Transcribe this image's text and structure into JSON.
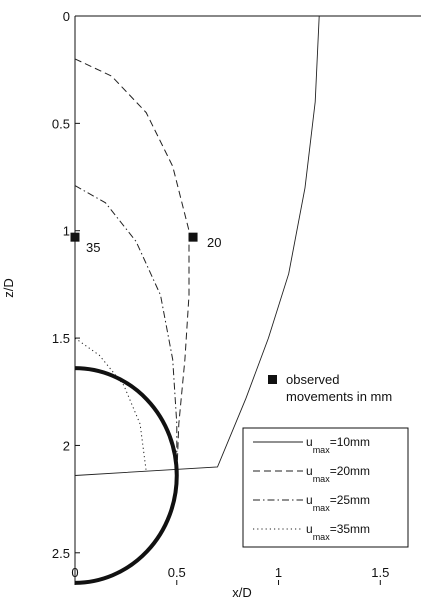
{
  "chart_data": {
    "type": "line",
    "xlabel": "x/D",
    "ylabel": "z/D",
    "xlim": [
      0,
      1.7
    ],
    "ylim": [
      2.65,
      0
    ],
    "y_axis_inverted": true,
    "xticks": [
      "0",
      "0.5",
      "1",
      "1.5"
    ],
    "xtick_values": [
      0,
      0.5,
      1,
      1.5
    ],
    "yticks": [
      "0",
      "0.5",
      "1",
      "1.5",
      "2",
      "2.5"
    ],
    "ytick_values": [
      0,
      0.5,
      1,
      1.5,
      2,
      2.5
    ],
    "grid": false,
    "legend": {
      "placement": "bottom-right",
      "entries": [
        {
          "prefix": "u",
          "sub": "max",
          "suffix": "=10mm",
          "style": "solid"
        },
        {
          "prefix": "u",
          "sub": "max",
          "suffix": "=20mm",
          "style": "dashed"
        },
        {
          "prefix": "u",
          "sub": "max",
          "suffix": "=25mm",
          "style": "dashdot"
        },
        {
          "prefix": "u",
          "sub": "max",
          "suffix": "=35mm",
          "style": "dotted"
        }
      ]
    },
    "marker_legend": {
      "line1": "observed",
      "line2": "movements in mm"
    },
    "observed_points": [
      {
        "x": 0.0,
        "y": 1.03,
        "label": "35"
      },
      {
        "x": 0.58,
        "y": 1.03,
        "label": "20"
      }
    ],
    "series": [
      {
        "style": "solid",
        "points": [
          [
            1.2,
            0
          ],
          [
            1.18,
            0.4
          ],
          [
            1.13,
            0.8
          ],
          [
            1.05,
            1.2
          ],
          [
            0.95,
            1.5
          ],
          [
            0.84,
            1.78
          ],
          [
            0.7,
            2.1
          ],
          [
            0.35,
            2.12
          ],
          [
            0.0,
            2.14
          ]
        ]
      },
      {
        "style": "dashed",
        "points": [
          [
            0.0,
            0.2
          ],
          [
            0.18,
            0.28
          ],
          [
            0.35,
            0.45
          ],
          [
            0.48,
            0.7
          ],
          [
            0.56,
            1.0
          ],
          [
            0.56,
            1.3
          ],
          [
            0.54,
            1.6
          ],
          [
            0.51,
            1.9
          ],
          [
            0.5,
            2.14
          ]
        ]
      },
      {
        "style": "dashdot",
        "points": [
          [
            0.0,
            0.79
          ],
          [
            0.15,
            0.87
          ],
          [
            0.3,
            1.05
          ],
          [
            0.42,
            1.3
          ],
          [
            0.48,
            1.6
          ],
          [
            0.5,
            1.9
          ],
          [
            0.5,
            2.12
          ]
        ]
      },
      {
        "style": "dotted",
        "points": [
          [
            0.0,
            1.5
          ],
          [
            0.12,
            1.58
          ],
          [
            0.24,
            1.72
          ],
          [
            0.32,
            1.9
          ],
          [
            0.35,
            2.12
          ]
        ]
      }
    ],
    "tunnel": {
      "center_x": 0.0,
      "center_y": 2.14,
      "radius": 0.5
    }
  }
}
